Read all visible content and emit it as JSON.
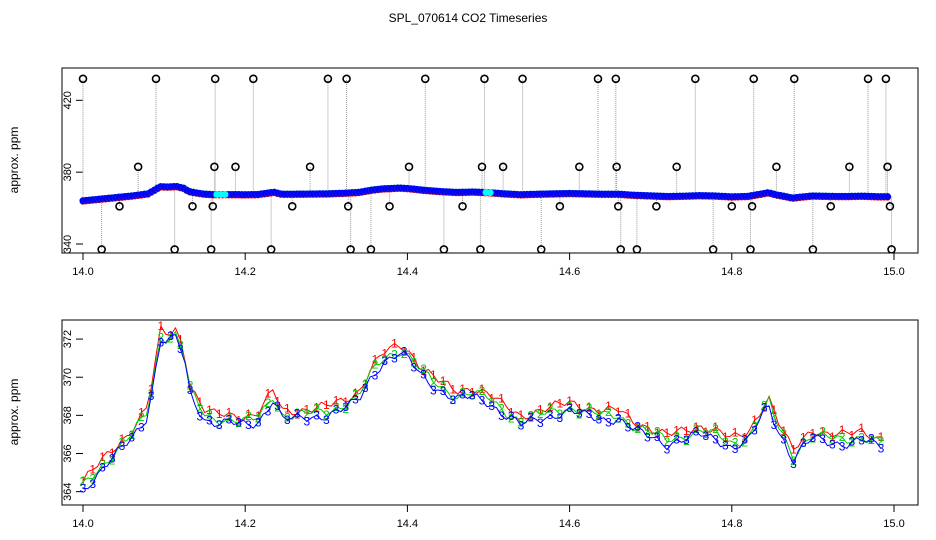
{
  "title": "SPL_070614  CO2 Timeseries",
  "colors": {
    "series1": "#ff0000",
    "series2": "#00cc00",
    "series3": "#0000ff",
    "outlier": "#000000",
    "flag": "#00ffff",
    "vline": "#999999"
  },
  "chart_data": [
    {
      "type": "scatter",
      "name": "top-panel",
      "ylabel": "approx. ppm",
      "xlim": [
        14.0,
        15.0
      ],
      "ylim": [
        335,
        438
      ],
      "xticks": [
        "14.0",
        "14.2",
        "14.4",
        "14.6",
        "14.8",
        "15.0"
      ],
      "yticks": [
        "340",
        "380",
        "420"
      ],
      "ytick_values": [
        340,
        380,
        420
      ],
      "xtick_values": [
        14.0,
        14.2,
        14.4,
        14.6,
        14.8,
        15.0
      ],
      "outliers": [
        {
          "x": 14.0,
          "y": 432
        },
        {
          "x": 14.023,
          "y": 337
        },
        {
          "x": 14.045,
          "y": 361
        },
        {
          "x": 14.068,
          "y": 383
        },
        {
          "x": 14.09,
          "y": 432
        },
        {
          "x": 14.113,
          "y": 337
        },
        {
          "x": 14.135,
          "y": 361
        },
        {
          "x": 14.158,
          "y": 337
        },
        {
          "x": 14.16,
          "y": 361
        },
        {
          "x": 14.162,
          "y": 383
        },
        {
          "x": 14.163,
          "y": 432
        },
        {
          "x": 14.188,
          "y": 383
        },
        {
          "x": 14.21,
          "y": 432
        },
        {
          "x": 14.232,
          "y": 337
        },
        {
          "x": 14.258,
          "y": 361
        },
        {
          "x": 14.28,
          "y": 383
        },
        {
          "x": 14.302,
          "y": 432
        },
        {
          "x": 14.325,
          "y": 432
        },
        {
          "x": 14.327,
          "y": 361
        },
        {
          "x": 14.33,
          "y": 337
        },
        {
          "x": 14.355,
          "y": 337
        },
        {
          "x": 14.378,
          "y": 361
        },
        {
          "x": 14.402,
          "y": 383
        },
        {
          "x": 14.422,
          "y": 432
        },
        {
          "x": 14.445,
          "y": 337
        },
        {
          "x": 14.468,
          "y": 361
        },
        {
          "x": 14.492,
          "y": 383
        },
        {
          "x": 14.495,
          "y": 432
        },
        {
          "x": 14.49,
          "y": 337
        },
        {
          "x": 14.518,
          "y": 383
        },
        {
          "x": 14.542,
          "y": 432
        },
        {
          "x": 14.565,
          "y": 337
        },
        {
          "x": 14.588,
          "y": 361
        },
        {
          "x": 14.612,
          "y": 383
        },
        {
          "x": 14.635,
          "y": 432
        },
        {
          "x": 14.657,
          "y": 432
        },
        {
          "x": 14.658,
          "y": 383
        },
        {
          "x": 14.66,
          "y": 361
        },
        {
          "x": 14.663,
          "y": 337
        },
        {
          "x": 14.683,
          "y": 337
        },
        {
          "x": 14.707,
          "y": 361
        },
        {
          "x": 14.732,
          "y": 383
        },
        {
          "x": 14.755,
          "y": 432
        },
        {
          "x": 14.777,
          "y": 337
        },
        {
          "x": 14.8,
          "y": 361
        },
        {
          "x": 14.823,
          "y": 337
        },
        {
          "x": 14.825,
          "y": 361
        },
        {
          "x": 14.827,
          "y": 432
        },
        {
          "x": 14.855,
          "y": 383
        },
        {
          "x": 14.877,
          "y": 432
        },
        {
          "x": 14.9,
          "y": 337
        },
        {
          "x": 14.922,
          "y": 361
        },
        {
          "x": 14.945,
          "y": 383
        },
        {
          "x": 14.968,
          "y": 432
        },
        {
          "x": 14.99,
          "y": 432
        },
        {
          "x": 14.992,
          "y": 383
        },
        {
          "x": 14.995,
          "y": 361
        },
        {
          "x": 14.997,
          "y": 337
        }
      ]
    },
    {
      "type": "line",
      "name": "bottom-panel",
      "ylabel": "approx. ppm",
      "xlim": [
        14.0,
        15.0
      ],
      "ylim": [
        363.3,
        373.0
      ],
      "xticks": [
        "14.0",
        "14.2",
        "14.4",
        "14.6",
        "14.8",
        "15.0"
      ],
      "yticks": [
        "364",
        "366",
        "368",
        "370",
        "372"
      ],
      "ytick_values": [
        364,
        366,
        368,
        370,
        372
      ],
      "xtick_values": [
        14.0,
        14.2,
        14.4,
        14.6,
        14.8,
        15.0
      ],
      "series_labels": [
        "1",
        "2",
        "3"
      ],
      "series_offsets": [
        0.45,
        0.2,
        0.0
      ],
      "baseline": [
        {
          "x": 14.0,
          "y": 364.1
        },
        {
          "x": 14.02,
          "y": 365.0
        },
        {
          "x": 14.04,
          "y": 365.9
        },
        {
          "x": 14.06,
          "y": 366.8
        },
        {
          "x": 14.08,
          "y": 368.0
        },
        {
          "x": 14.09,
          "y": 370.5
        },
        {
          "x": 14.095,
          "y": 372.0
        },
        {
          "x": 14.105,
          "y": 371.8
        },
        {
          "x": 14.115,
          "y": 372.1
        },
        {
          "x": 14.125,
          "y": 371.0
        },
        {
          "x": 14.13,
          "y": 369.3
        },
        {
          "x": 14.14,
          "y": 368.5
        },
        {
          "x": 14.15,
          "y": 367.8
        },
        {
          "x": 14.16,
          "y": 367.6
        },
        {
          "x": 14.18,
          "y": 367.6
        },
        {
          "x": 14.2,
          "y": 367.5
        },
        {
          "x": 14.215,
          "y": 367.6
        },
        {
          "x": 14.225,
          "y": 368.2
        },
        {
          "x": 14.235,
          "y": 368.9
        },
        {
          "x": 14.245,
          "y": 367.8
        },
        {
          "x": 14.26,
          "y": 367.8
        },
        {
          "x": 14.28,
          "y": 367.9
        },
        {
          "x": 14.3,
          "y": 368.0
        },
        {
          "x": 14.32,
          "y": 368.3
        },
        {
          "x": 14.34,
          "y": 368.8
        },
        {
          "x": 14.355,
          "y": 370.0
        },
        {
          "x": 14.37,
          "y": 370.8
        },
        {
          "x": 14.39,
          "y": 371.2
        },
        {
          "x": 14.4,
          "y": 371.0
        },
        {
          "x": 14.41,
          "y": 370.5
        },
        {
          "x": 14.42,
          "y": 370.0
        },
        {
          "x": 14.44,
          "y": 369.3
        },
        {
          "x": 14.46,
          "y": 368.8
        },
        {
          "x": 14.48,
          "y": 369.0
        },
        {
          "x": 14.5,
          "y": 368.7
        },
        {
          "x": 14.52,
          "y": 368.0
        },
        {
          "x": 14.54,
          "y": 367.5
        },
        {
          "x": 14.56,
          "y": 367.8
        },
        {
          "x": 14.58,
          "y": 368.0
        },
        {
          "x": 14.6,
          "y": 368.2
        },
        {
          "x": 14.62,
          "y": 368.0
        },
        {
          "x": 14.64,
          "y": 367.8
        },
        {
          "x": 14.66,
          "y": 367.8
        },
        {
          "x": 14.68,
          "y": 367.2
        },
        {
          "x": 14.7,
          "y": 366.9
        },
        {
          "x": 14.72,
          "y": 366.5
        },
        {
          "x": 14.74,
          "y": 366.7
        },
        {
          "x": 14.76,
          "y": 367.0
        },
        {
          "x": 14.78,
          "y": 366.8
        },
        {
          "x": 14.8,
          "y": 366.3
        },
        {
          "x": 14.82,
          "y": 366.6
        },
        {
          "x": 14.835,
          "y": 367.8
        },
        {
          "x": 14.845,
          "y": 368.6
        },
        {
          "x": 14.855,
          "y": 367.4
        },
        {
          "x": 14.865,
          "y": 366.6
        },
        {
          "x": 14.875,
          "y": 365.6
        },
        {
          "x": 14.885,
          "y": 366.2
        },
        {
          "x": 14.9,
          "y": 366.8
        },
        {
          "x": 14.92,
          "y": 366.6
        },
        {
          "x": 14.94,
          "y": 366.5
        },
        {
          "x": 14.96,
          "y": 366.7
        },
        {
          "x": 14.98,
          "y": 366.4
        }
      ]
    }
  ]
}
